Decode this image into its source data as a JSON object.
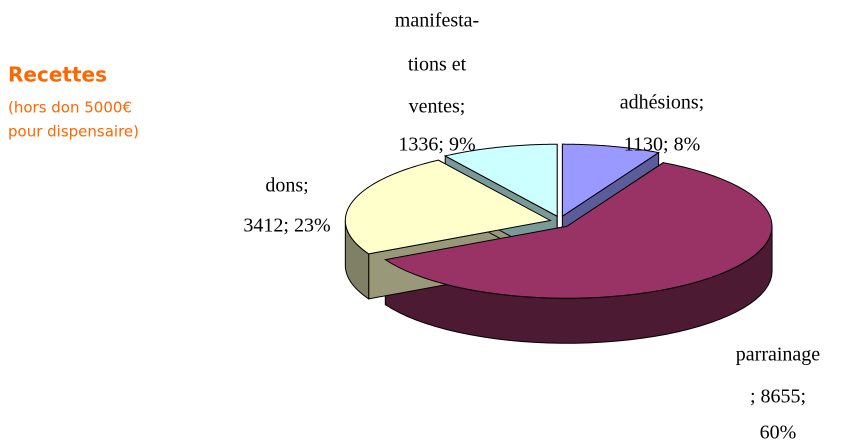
{
  "chart_data": {
    "type": "pie",
    "title": "Recettes",
    "subtitle": [
      "(hors don 5000€",
      "pour dispensaire)"
    ],
    "values": [
      1130,
      8655,
      3412,
      1336
    ],
    "value_labels": [
      [
        "adhésions;",
        "1130; 8%"
      ],
      [
        "parrainage",
        "; 8655;",
        "60%"
      ],
      [
        "dons;",
        "3412; 23%"
      ],
      [
        "manifesta-",
        "tions et",
        "ventes;",
        "1336; 9%"
      ]
    ],
    "colors": [
      "#9999ff",
      "#993366",
      "#ffffcc",
      "#ccffff"
    ]
  }
}
